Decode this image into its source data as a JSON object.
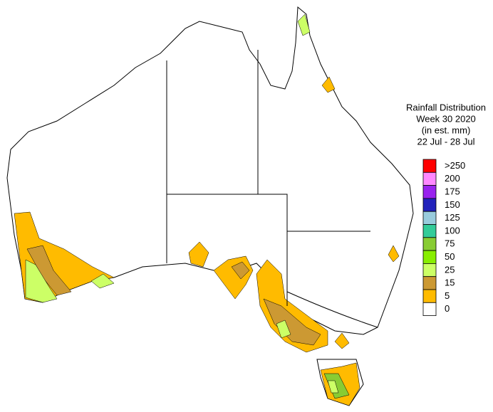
{
  "legend": {
    "title": [
      "Rainfall Distribution",
      "Week 30 2020",
      "(in est. mm)",
      "22 Jul - 28 Jul"
    ],
    "entries": [
      {
        "label": ">250",
        "color": "#ff0000"
      },
      {
        "label": "200",
        "color": "#ff88ff"
      },
      {
        "label": "175",
        "color": "#9922ee"
      },
      {
        "label": "150",
        "color": "#2222bb"
      },
      {
        "label": "125",
        "color": "#99ccdd"
      },
      {
        "label": "100",
        "color": "#33cc99"
      },
      {
        "label": "75",
        "color": "#88cc33"
      },
      {
        "label": "50",
        "color": "#88ee00"
      },
      {
        "label": "25",
        "color": "#ccff66"
      },
      {
        "label": "15",
        "color": "#cc9933"
      },
      {
        "label": "5",
        "color": "#ffbb00"
      },
      {
        "label": "0",
        "color": "#ffffff"
      }
    ]
  }
}
